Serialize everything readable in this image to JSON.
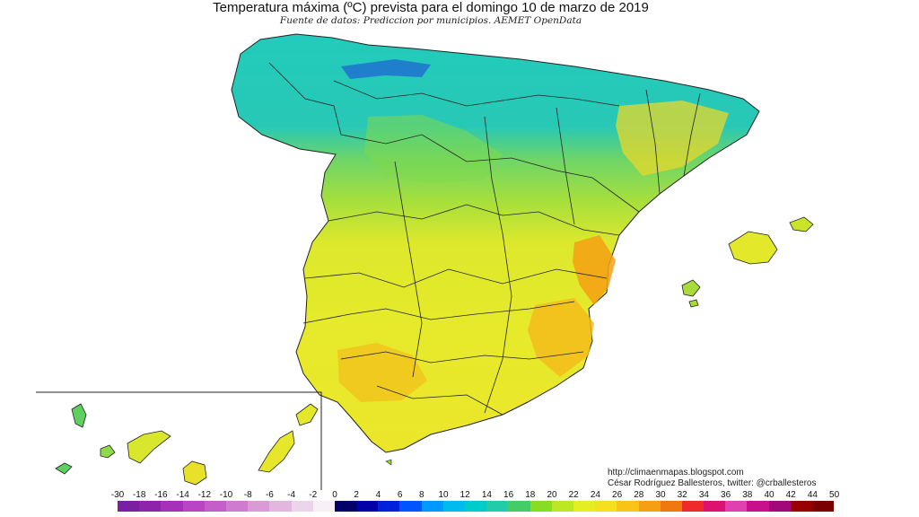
{
  "header": {
    "title": "Temperatura máxima (ºC) prevista para el domingo 10 de marzo de 2019",
    "subtitle": "Fuente de datos: Prediccion por municipios. AEMET OpenData"
  },
  "credits": {
    "url": "http://climaenmapas.blogspot.com",
    "author": "César Rodríguez Ballesteros, twitter: @crballesteros"
  },
  "legend": {
    "unit": "ºC",
    "ticks": [
      "-30",
      "-18",
      "-16",
      "-14",
      "-12",
      "-10",
      "-8",
      "-6",
      "-4",
      "-2",
      "0",
      "2",
      "4",
      "6",
      "8",
      "10",
      "12",
      "14",
      "16",
      "18",
      "20",
      "22",
      "24",
      "26",
      "28",
      "30",
      "32",
      "34",
      "36",
      "38",
      "40",
      "42",
      "44",
      "50"
    ],
    "colors": [
      "#7b1fa2",
      "#8e24aa",
      "#a531b8",
      "#b944c4",
      "#c45ec9",
      "#cf7bcf",
      "#d99ad6",
      "#e2b6df",
      "#ecd5ea",
      "#f7f0f6",
      "#000066",
      "#0000a8",
      "#0022dd",
      "#0055ff",
      "#0099ff",
      "#00bbee",
      "#00cccc",
      "#22ccaa",
      "#44cc66",
      "#88dd22",
      "#bbe822",
      "#e4ee22",
      "#f5e020",
      "#f8c418",
      "#f5a014",
      "#f07810",
      "#ee2a2a",
      "#dd1170",
      "#e040b0",
      "#c8108c",
      "#a3087a",
      "#990000",
      "#7a0000"
    ]
  },
  "regions": [
    {
      "name": "north-cantabrian-zone",
      "band": "12-14",
      "color": "#22cbbb"
    },
    {
      "name": "northern-plateau-zone",
      "band": "14-18",
      "color": "#62d47e"
    },
    {
      "name": "central-southern-zone",
      "band": "20-24",
      "color": "#e5ea2e"
    },
    {
      "name": "valencia-coast-zone",
      "band": "26-30",
      "color": "#f5a014"
    }
  ]
}
